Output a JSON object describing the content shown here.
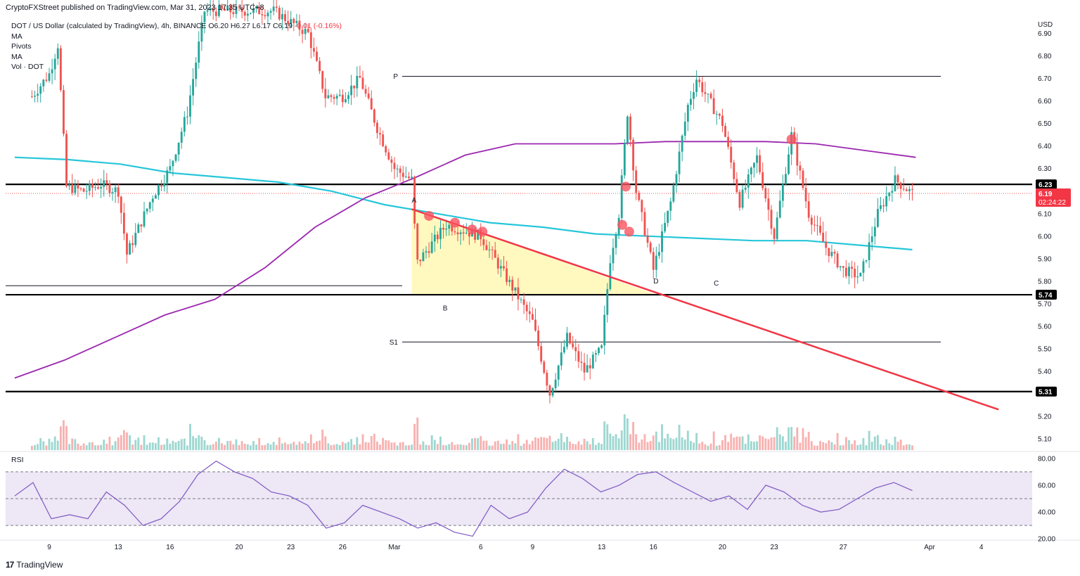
{
  "header": {
    "published": "CryptoFXStreet published on TradingView.com, Mar 31, 2023 17:35 UTC+8"
  },
  "legend": {
    "symbol": "DOT / US Dollar (calculated by TradingView), 4h, BINANCE",
    "ohlc": "O6.20 H6.27 L6.17 C6.19",
    "change": "-0.01 (-0.16%)",
    "indicators": [
      "MA",
      "Pivots",
      "MA",
      "Vol · DOT"
    ]
  },
  "rsi_panel": {
    "label": "RSI"
  },
  "footer": {
    "brand": "TradingView",
    "brand_logo": "17"
  },
  "colors": {
    "up": "#26a69a",
    "down": "#ef5350",
    "ma_fast": "#9c27b0",
    "ma_slow": "#26c6da",
    "trendline": "#f23645",
    "triangle_fill": "#fff59d",
    "marker": "#f7525f",
    "rsi": "#7e57c2",
    "rsi_band": "#ede7f6",
    "label_bg": "#000000",
    "price_bg": "#f23645"
  },
  "chart_data": [
    {
      "type": "candlestick",
      "title": "DOT / US Dollar (calculated by TradingView), 4h, BINANCE",
      "currency": "USD",
      "ylim": [
        5.05,
        6.98
      ],
      "y_ticks": [
        5.1,
        5.2,
        5.3,
        5.4,
        5.5,
        5.6,
        5.7,
        5.8,
        5.9,
        6.0,
        6.1,
        6.2,
        6.3,
        6.4,
        6.5,
        6.6,
        6.7,
        6.8,
        6.9
      ],
      "x_tick_labels": [
        "9",
        "13",
        "16",
        "20",
        "23",
        "26",
        "Mar",
        "6",
        "9",
        "13",
        "16",
        "20",
        "23",
        "27",
        "Apr",
        "4"
      ],
      "horizontal_levels": [
        {
          "label": "6.23",
          "value": 6.23
        },
        {
          "label": "5.74",
          "value": 5.74
        },
        {
          "label": "5.31",
          "value": 5.31
        }
      ],
      "last_price": {
        "value": "6.19",
        "countdown": "02:24:22"
      },
      "pivots": [
        {
          "label": "P",
          "value": 6.71
        },
        {
          "label": "S1",
          "value": 5.53
        }
      ],
      "pattern_points": [
        "A",
        "B",
        "C",
        "D"
      ],
      "descending_trendline": {
        "from": [
          "Mar 2",
          6.12
        ],
        "to": [
          "Apr 5",
          5.23
        ]
      },
      "triangle_pattern": {
        "top_start": 6.12,
        "base": 5.74
      },
      "series": [
        {
          "name": "MA",
          "color": "#9c27b0",
          "values": [
            5.37,
            5.45,
            5.55,
            5.65,
            5.72,
            5.86,
            6.04,
            6.17,
            6.26,
            6.36,
            6.41,
            6.41,
            6.41,
            6.42,
            6.42,
            6.42,
            6.41,
            6.38,
            6.35
          ]
        },
        {
          "name": "MA",
          "color": "#26c6da",
          "values": [
            6.35,
            6.34,
            6.32,
            6.28,
            6.26,
            6.24,
            6.2,
            6.14,
            6.1,
            6.06,
            6.04,
            6.01,
            6.0,
            5.99,
            5.98,
            5.98,
            5.96,
            5.94
          ]
        }
      ],
      "price_path": [
        [
          "Feb 8",
          6.62
        ],
        [
          "Feb 9",
          6.72
        ],
        [
          "Feb 9.5",
          6.85
        ],
        [
          "Feb 10",
          6.22
        ],
        [
          "Feb 11",
          6.2
        ],
        [
          "Feb 12",
          6.23
        ],
        [
          "Feb 13",
          6.2
        ],
        [
          "Feb 13.5",
          5.92
        ],
        [
          "Feb 15",
          6.18
        ],
        [
          "Feb 16",
          6.3
        ],
        [
          "Feb 17",
          6.55
        ],
        [
          "Feb 18",
          7.0
        ],
        [
          "Feb 22",
          7.0
        ],
        [
          "Feb 24",
          6.9
        ],
        [
          "Feb 25",
          6.62
        ],
        [
          "Feb 26",
          6.62
        ],
        [
          "Feb 27",
          6.7
        ],
        [
          "Feb 28",
          6.48
        ],
        [
          "Mar 1",
          6.3
        ],
        [
          "Mar 2",
          6.25
        ],
        [
          "Mar 2.3",
          5.88
        ],
        [
          "Mar 4",
          6.05
        ],
        [
          "Mar 6",
          6.0
        ],
        [
          "Mar 8",
          5.75
        ],
        [
          "Mar 9",
          5.62
        ],
        [
          "Mar 10",
          5.3
        ],
        [
          "Mar 11",
          5.55
        ],
        [
          "Mar 12",
          5.4
        ],
        [
          "Mar 13",
          5.5
        ],
        [
          "Mar 13.5",
          5.9
        ],
        [
          "Mar 14",
          6.1
        ],
        [
          "Mar 14.5",
          6.55
        ],
        [
          "Mar 15",
          6.2
        ],
        [
          "Mar 16",
          5.85
        ],
        [
          "Mar 17",
          6.15
        ],
        [
          "Mar 18",
          6.58
        ],
        [
          "Mar 18.5",
          6.7
        ],
        [
          "Mar 20",
          6.5
        ],
        [
          "Mar 21",
          6.15
        ],
        [
          "Mar 22",
          6.35
        ],
        [
          "Mar 23",
          6.0
        ],
        [
          "Mar 24",
          6.45
        ],
        [
          "Mar 25",
          6.1
        ],
        [
          "Mar 26",
          5.95
        ],
        [
          "Mar 27",
          5.85
        ],
        [
          "Mar 28",
          5.82
        ],
        [
          "Mar 29",
          6.1
        ],
        [
          "Mar 30",
          6.25
        ],
        [
          "Mar 31",
          6.19
        ]
      ]
    },
    {
      "type": "line",
      "title": "RSI",
      "ylim": [
        18,
        82
      ],
      "y_ticks": [
        20.0,
        40.0,
        60.0,
        80.0
      ],
      "bands": [
        30,
        50,
        70
      ],
      "values": [
        52,
        62,
        35,
        38,
        35,
        55,
        45,
        30,
        35,
        48,
        68,
        78,
        70,
        65,
        55,
        52,
        45,
        28,
        32,
        45,
        40,
        35,
        28,
        32,
        25,
        22,
        45,
        35,
        40,
        58,
        72,
        65,
        55,
        60,
        68,
        70,
        62,
        55,
        48,
        52,
        42,
        60,
        55,
        45,
        40,
        42,
        50,
        58,
        62,
        56
      ]
    }
  ]
}
